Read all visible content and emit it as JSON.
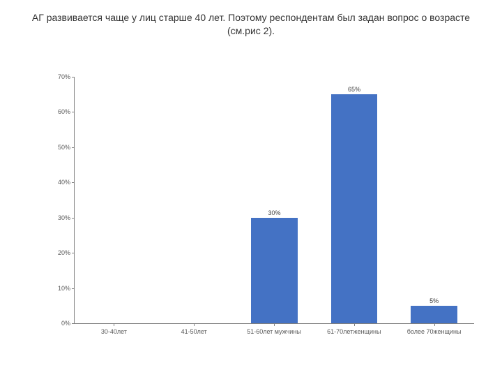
{
  "title": "АГ развивается чаще у лиц старше 40 лет. Поэтому респондентам был задан вопрос о возрасте (см.рис 2).",
  "chart": {
    "type": "bar",
    "ylim": [
      0,
      70
    ],
    "ytick_step": 10,
    "ytick_suffix": "%",
    "bar_color": "#4472c4",
    "axis_color": "#808080",
    "background_color": "#ffffff",
    "label_fontsize": 9,
    "title_fontsize": 14,
    "bar_width": 0.58,
    "categories": [
      "30-40лет",
      "41-50лет",
      "51-60лет мужчины",
      "61-70летженщины",
      "более 70женщины"
    ],
    "values": [
      0,
      0,
      30,
      65,
      5
    ],
    "value_labels": [
      "",
      "",
      "30%",
      "65%",
      "5%"
    ]
  }
}
